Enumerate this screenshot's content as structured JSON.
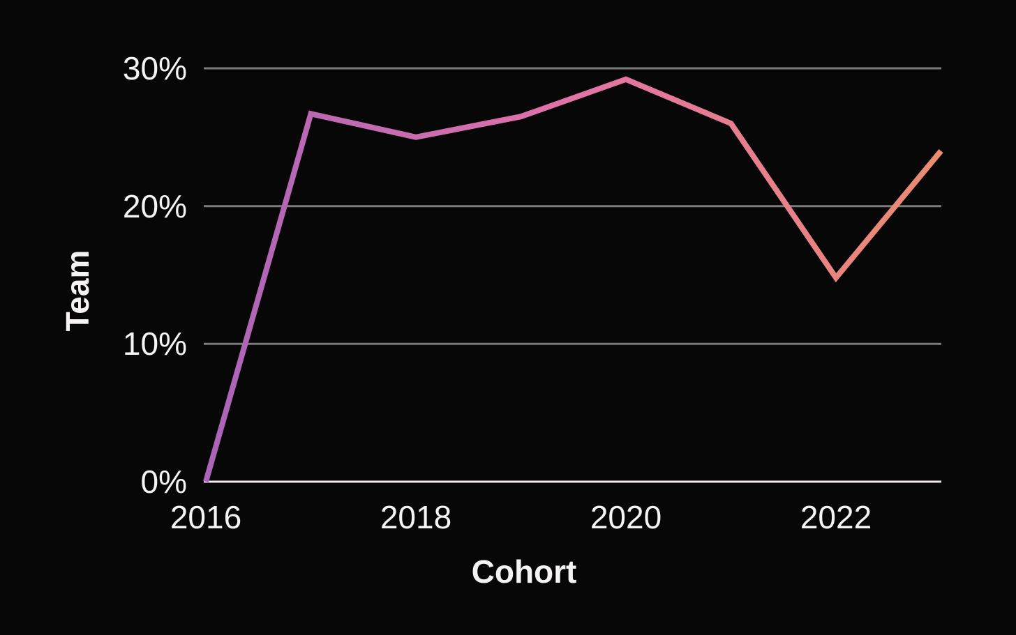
{
  "figure": {
    "background": "#070707",
    "text_color": "#f5f3f4",
    "grid_color": "#7b7b7b",
    "axis_line_color": "#f1eaee"
  },
  "chart_data": {
    "type": "line",
    "title": "",
    "xlabel": "Cohort",
    "ylabel": "Team",
    "x": [
      2016,
      2017,
      2018,
      2019,
      2020,
      2021,
      2022,
      2023
    ],
    "values": [
      0,
      26.7,
      25,
      26.5,
      29.2,
      26,
      14.8,
      24
    ],
    "unit": "%",
    "ylim": [
      0,
      30
    ],
    "yticks": [
      {
        "value": 0,
        "label": "0%"
      },
      {
        "value": 10,
        "label": "10%"
      },
      {
        "value": 20,
        "label": "20%"
      },
      {
        "value": 30,
        "label": "30%"
      }
    ],
    "xticks": [
      {
        "value": 2016,
        "label": "2016"
      },
      {
        "value": 2018,
        "label": "2018"
      },
      {
        "value": 2020,
        "label": "2020"
      },
      {
        "value": 2022,
        "label": "2022"
      }
    ],
    "grid": "horizontal",
    "legend": "none",
    "line_width": 8,
    "line_gradient": [
      "#aa64b8",
      "#e273a7",
      "#ec8c70"
    ]
  }
}
